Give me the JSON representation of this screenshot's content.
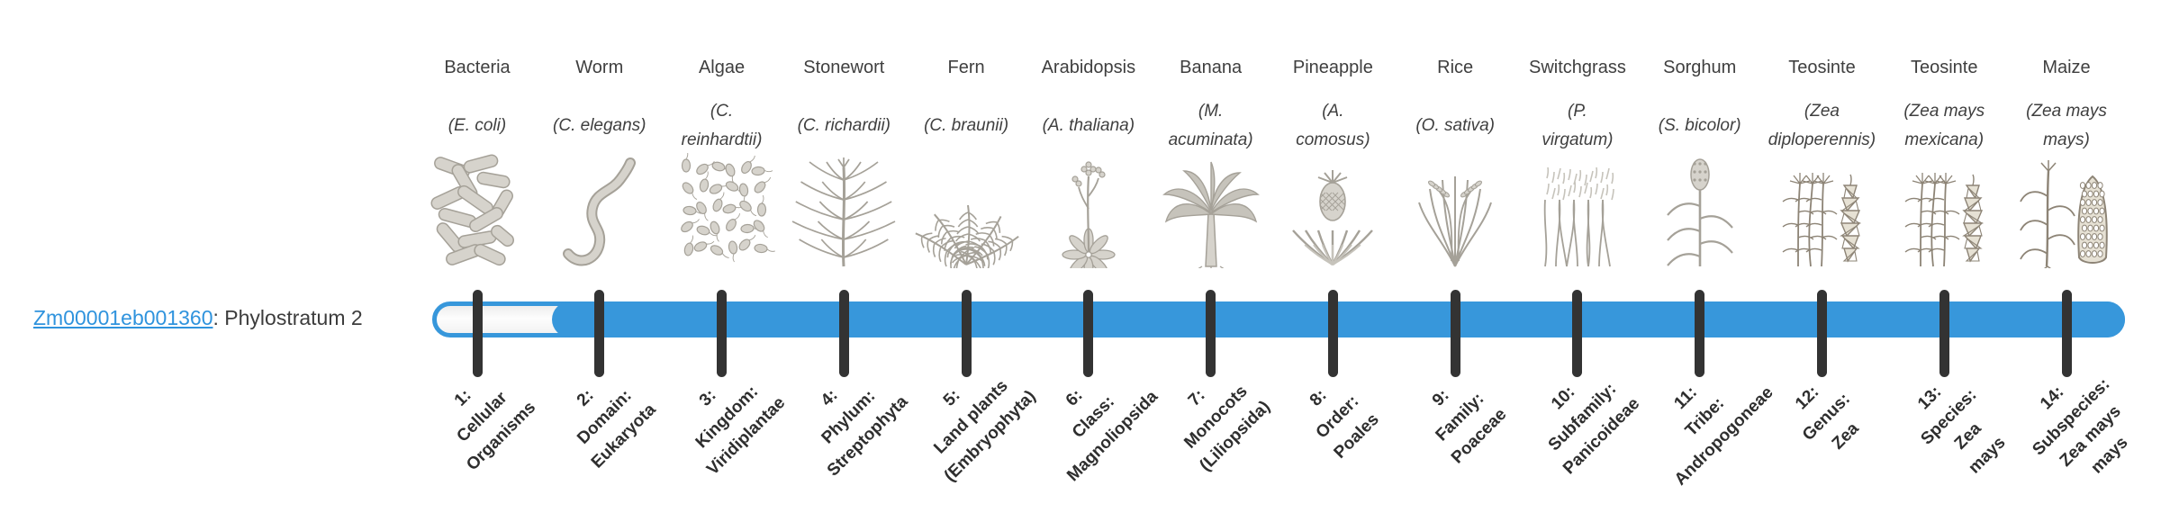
{
  "gene": {
    "id": "Zm00001eb001360",
    "label_suffix": ": Phylostratum 2",
    "phylostratum_text": "Phylostratum 2"
  },
  "colors": {
    "bar_blue": "#3797db",
    "link_blue": "#2f93dd",
    "tick_dark": "#333333",
    "engraving_gray": "#b3afa6",
    "sketch_sepia": "#8d8476"
  },
  "organisms": [
    {
      "common_name": "Bacteria",
      "scientific_name": "(E. coli)",
      "icon": "bacteria",
      "stratum_label": "1:\nCellular\nOrganisms"
    },
    {
      "common_name": "Worm",
      "scientific_name": "(C. elegans)",
      "icon": "worm",
      "stratum_label": "2:\nDomain:\nEukaryota"
    },
    {
      "common_name": "Algae",
      "scientific_name": "(C.\nreinhardtii)",
      "icon": "algae",
      "stratum_label": "3:\nKingdom:\nViridiplantae"
    },
    {
      "common_name": "Stonewort",
      "scientific_name": "(C. richardii)",
      "icon": "stonewort",
      "stratum_label": "4:\nPhylum:\nStreptophyta"
    },
    {
      "common_name": "Fern",
      "scientific_name": "(C. braunii)",
      "icon": "fern",
      "stratum_label": "5:\nLand plants\n(Embryophyta)"
    },
    {
      "common_name": "Arabidopsis",
      "scientific_name": "(A. thaliana)",
      "icon": "arabidopsis",
      "stratum_label": "6:\nClass:\nMagnoliopsida"
    },
    {
      "common_name": "Banana",
      "scientific_name": "(M.\nacuminata)",
      "icon": "banana",
      "stratum_label": "7:\nMonocots\n(Liliopsida)"
    },
    {
      "common_name": "Pineapple",
      "scientific_name": "(A.\ncomosus)",
      "icon": "pineapple",
      "stratum_label": "8:\nOrder:\nPoales"
    },
    {
      "common_name": "Rice",
      "scientific_name": "(O. sativa)",
      "icon": "rice",
      "stratum_label": "9:\nFamily:\nPoaceae"
    },
    {
      "common_name": "Switchgrass",
      "scientific_name": "(P.\nvirgatum)",
      "icon": "switchgrass",
      "stratum_label": "10:\nSubfamily:\nPanicoideae"
    },
    {
      "common_name": "Sorghum",
      "scientific_name": "(S. bicolor)",
      "icon": "sorghum",
      "stratum_label": "11:\nTribe:\nAndropogoneae"
    },
    {
      "common_name": "Teosinte",
      "scientific_name": "(Zea\ndiploperennis)",
      "icon": "teosinte",
      "stratum_label": "12:\nGenus:\nZea"
    },
    {
      "common_name": "Teosinte",
      "scientific_name": "(Zea mays\nmexicana)",
      "icon": "teosinte",
      "stratum_label": "13:\nSpecies:\nZea\nmays"
    },
    {
      "common_name": "Maize",
      "scientific_name": "(Zea mays\nmays)",
      "icon": "maize",
      "stratum_label": "14:\nSubspecies:\nZea mays\nmays"
    }
  ]
}
